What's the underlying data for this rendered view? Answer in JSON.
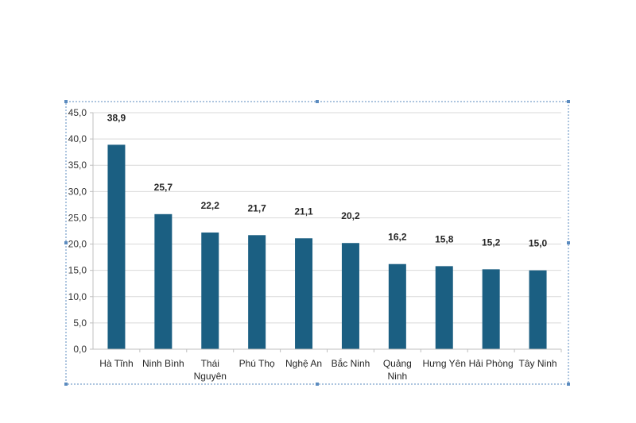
{
  "chart_data": {
    "type": "bar",
    "title": "",
    "xlabel": "",
    "ylabel": "",
    "categories": [
      "Hà Tĩnh",
      "Ninh Bình",
      "Thái Nguyên",
      "Phú Thọ",
      "Nghệ An",
      "Bắc Ninh",
      "Quảng Ninh",
      "Hưng Yên",
      "Hải Phòng",
      "Tây Ninh"
    ],
    "category_lines": [
      [
        "Hà Tĩnh"
      ],
      [
        "Ninh Bình"
      ],
      [
        "Thái",
        "Nguyên"
      ],
      [
        "Phú Thọ"
      ],
      [
        "Nghệ An"
      ],
      [
        "Bắc Ninh"
      ],
      [
        "Quảng",
        "Ninh"
      ],
      [
        "Hưng Yên"
      ],
      [
        "Hải Phòng"
      ],
      [
        "Tây Ninh"
      ]
    ],
    "values": [
      38.9,
      25.7,
      22.2,
      21.7,
      21.1,
      20.2,
      16.2,
      15.8,
      15.2,
      15.0
    ],
    "value_labels": [
      "38,9",
      "25,7",
      "22,2",
      "21,7",
      "21,1",
      "20,2",
      "16,2",
      "15,8",
      "15,2",
      "15,0"
    ],
    "ylim": [
      0,
      45
    ],
    "yticks": [
      0,
      5,
      10,
      15,
      20,
      25,
      30,
      35,
      40,
      45
    ],
    "ytick_labels": [
      "0,0",
      "5,0",
      "10,0",
      "15,0",
      "20,0",
      "25,0",
      "30,0",
      "35,0",
      "40,0",
      "45,0"
    ],
    "grid": true,
    "legend": "none",
    "colors": {
      "bar": "#1b5f82",
      "grid": "#d9d9d9",
      "axis": "#bfbfbf",
      "frame": "#5b8bbf"
    }
  }
}
